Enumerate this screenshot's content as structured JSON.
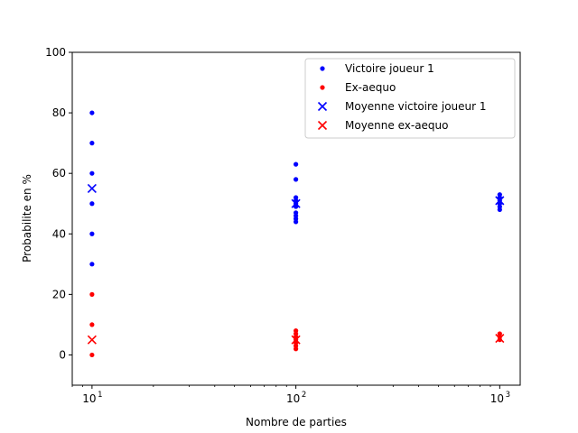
{
  "chart_data": {
    "type": "scatter",
    "title": "",
    "xlabel": "Nombre de parties",
    "ylabel": "Probabilite en %",
    "xscale": "log",
    "xlim": [
      8,
      1260
    ],
    "ylim": [
      -10,
      100
    ],
    "yticks": [
      0,
      20,
      40,
      60,
      80,
      100
    ],
    "xticks": [
      {
        "value": 10,
        "base": "10",
        "exp": "1"
      },
      {
        "value": 100,
        "base": "10",
        "exp": "2"
      },
      {
        "value": 1000,
        "base": "10",
        "exp": "3"
      }
    ],
    "grid": false,
    "legend_position": "top-right",
    "series": [
      {
        "name": "Victoire joueur 1",
        "marker": "dot",
        "color": "#0000ff",
        "points": [
          [
            10,
            80
          ],
          [
            10,
            70
          ],
          [
            10,
            60
          ],
          [
            10,
            50
          ],
          [
            10,
            40
          ],
          [
            10,
            30
          ],
          [
            100,
            63
          ],
          [
            100,
            58
          ],
          [
            100,
            52
          ],
          [
            100,
            51
          ],
          [
            100,
            50
          ],
          [
            100,
            49
          ],
          [
            100,
            47
          ],
          [
            100,
            46
          ],
          [
            100,
            45
          ],
          [
            100,
            44
          ],
          [
            1000,
            53
          ],
          [
            1000,
            52
          ],
          [
            1000,
            51
          ],
          [
            1000,
            50
          ],
          [
            1000,
            49
          ],
          [
            1000,
            48
          ]
        ]
      },
      {
        "name": "Ex-aequo",
        "marker": "dot",
        "color": "#ff0000",
        "points": [
          [
            10,
            20
          ],
          [
            10,
            10
          ],
          [
            10,
            0
          ],
          [
            100,
            8
          ],
          [
            100,
            7
          ],
          [
            100,
            6
          ],
          [
            100,
            5
          ],
          [
            100,
            4
          ],
          [
            100,
            3
          ],
          [
            100,
            2
          ],
          [
            1000,
            7
          ],
          [
            1000,
            6
          ],
          [
            1000,
            5
          ]
        ]
      },
      {
        "name": "Moyenne victoire joueur 1",
        "marker": "x",
        "color": "#0000ff",
        "points": [
          [
            10,
            55
          ],
          [
            100,
            50
          ],
          [
            1000,
            51
          ]
        ]
      },
      {
        "name": "Moyenne ex-aequo",
        "marker": "x",
        "color": "#ff0000",
        "points": [
          [
            10,
            5
          ],
          [
            100,
            5
          ],
          [
            1000,
            5.5
          ]
        ]
      }
    ]
  }
}
